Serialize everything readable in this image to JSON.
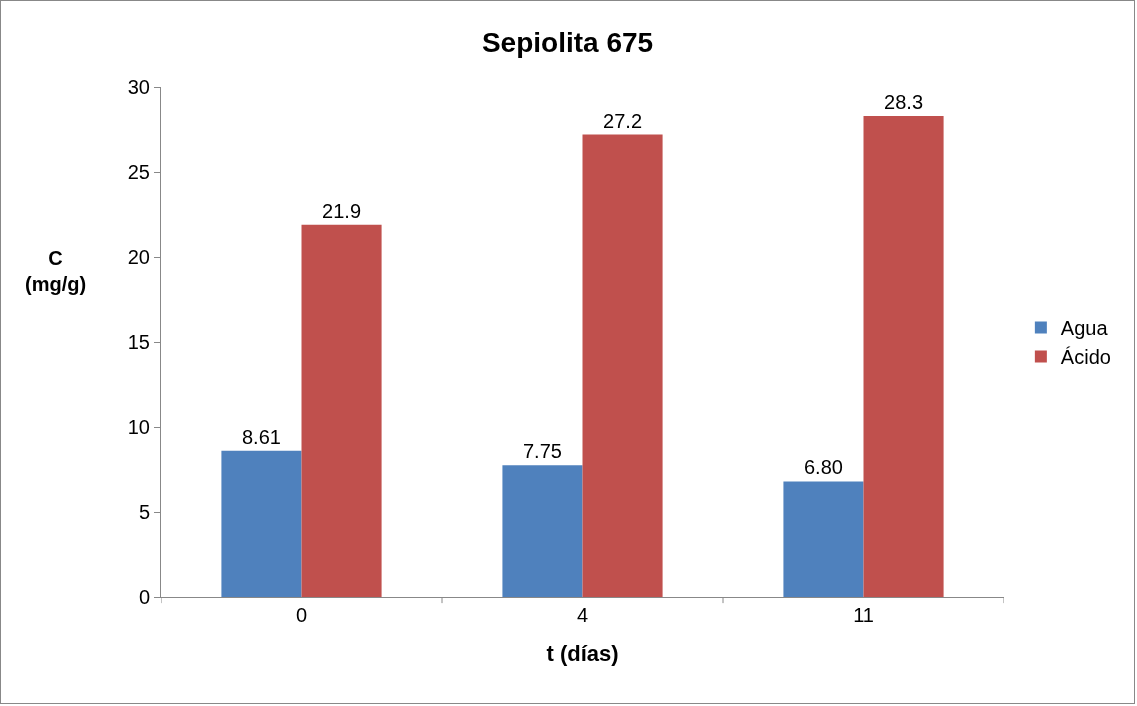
{
  "chart_data": {
    "type": "bar",
    "title": "Sepiolita 675",
    "xlabel": "t (días)",
    "ylabel": "C\n(mg/g)",
    "categories": [
      "0",
      "4",
      "11"
    ],
    "series": [
      {
        "name": "Agua",
        "color": "#4f81bd",
        "values": [
          8.61,
          7.75,
          6.8
        ],
        "value_labels": [
          "8.61",
          "7.75",
          "6.80"
        ]
      },
      {
        "name": "Ácido",
        "color": "#c0504d",
        "values": [
          21.9,
          27.2,
          28.3
        ],
        "value_labels": [
          "21.9",
          "27.2",
          "28.3"
        ]
      }
    ],
    "ylim": [
      0,
      30
    ],
    "yticks": [
      0,
      5,
      10,
      15,
      20,
      25,
      30
    ],
    "grid": false,
    "legend": "right"
  }
}
